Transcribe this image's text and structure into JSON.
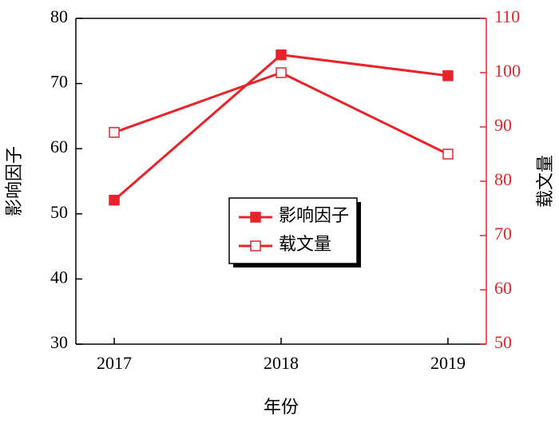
{
  "chart_data": {
    "type": "line",
    "x_label": "年份",
    "y_label": "影响因子",
    "y2_label": "载文量",
    "x": [
      2017,
      2018,
      2019
    ],
    "xlim": [
      2016.77,
      2019.23
    ],
    "xticks": [
      2017,
      2018,
      2019
    ],
    "ylim": [
      30,
      80
    ],
    "yticks": [
      30,
      40,
      50,
      60,
      70,
      80
    ],
    "y2lim": [
      50,
      110
    ],
    "y2ticks": [
      50,
      60,
      70,
      80,
      90,
      100,
      110
    ],
    "y2_color": "#e8232a",
    "legend": "center",
    "series": [
      {
        "name": "影响因子",
        "color": "#e8232a",
        "marker": "filled-square",
        "values": [
          52.1,
          74.4,
          71.2
        ]
      },
      {
        "name": "载文量",
        "color": "#e8232a",
        "marker": "open-square",
        "axis": "y2",
        "values": [
          89,
          100,
          85
        ]
      }
    ]
  }
}
